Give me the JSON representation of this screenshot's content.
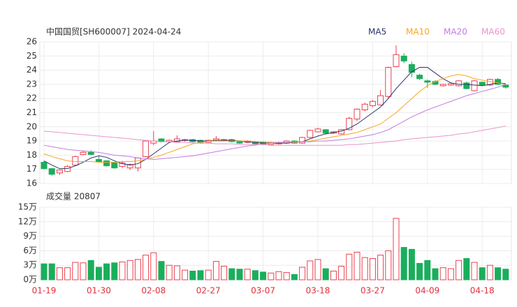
{
  "chart_data": [
    {
      "type": "candlestick",
      "title": "中国国贸[SH600007] 2024-04-24",
      "up_color": "#e8414f",
      "down_color": "#1aae5c",
      "grid": true,
      "ylim": [
        16,
        26
      ],
      "yticks": [
        16,
        17,
        18,
        19,
        20,
        21,
        22,
        23,
        24,
        25,
        26
      ],
      "open": [
        17.5,
        17.05,
        16.75,
        16.85,
        17.3,
        18.05,
        18.2,
        17.7,
        17.6,
        17.45,
        17.2,
        17.1,
        17.1,
        17.9,
        18.85,
        19.15,
        18.95,
        18.95,
        19.05,
        19.1,
        19.05,
        18.9,
        19.05,
        19.05,
        19.1,
        19.0,
        18.9,
        18.95,
        18.9,
        18.75,
        18.8,
        18.85,
        19.0,
        18.85,
        19.25,
        19.65,
        19.8,
        19.55,
        19.5,
        19.8,
        20.55,
        21.2,
        21.5,
        21.55,
        22.15,
        24.25,
        25.0,
        24.4,
        23.65,
        23.25,
        23.2,
        22.9,
        22.95,
        22.9,
        23.1,
        22.55,
        23.15,
        22.95,
        23.35,
        22.95
      ],
      "high": [
        17.6,
        17.1,
        17.0,
        17.3,
        17.95,
        18.3,
        18.35,
        17.9,
        17.65,
        17.5,
        17.6,
        17.4,
        17.85,
        19.05,
        19.7,
        19.2,
        19.1,
        19.4,
        19.15,
        19.15,
        19.1,
        19.1,
        19.35,
        19.15,
        19.15,
        19.05,
        19.05,
        19.0,
        18.95,
        18.95,
        18.95,
        19.05,
        19.05,
        19.3,
        19.8,
        19.95,
        19.85,
        19.7,
        19.85,
        20.7,
        21.3,
        21.7,
        21.9,
        22.6,
        24.25,
        25.75,
        25.2,
        24.6,
        23.75,
        23.35,
        23.3,
        23.05,
        23.1,
        23.3,
        23.2,
        23.3,
        23.2,
        23.4,
        23.45,
        23.0
      ],
      "low": [
        17.0,
        16.55,
        16.6,
        16.8,
        17.25,
        18.0,
        18.0,
        17.5,
        17.2,
        17.05,
        17.1,
        16.95,
        16.85,
        17.85,
        18.7,
        18.9,
        18.85,
        18.9,
        18.95,
        18.9,
        18.8,
        18.85,
        19.0,
        19.0,
        18.9,
        18.8,
        18.85,
        18.75,
        18.7,
        18.7,
        18.75,
        18.8,
        18.8,
        18.8,
        19.2,
        19.6,
        19.5,
        19.5,
        19.45,
        19.75,
        20.4,
        21.1,
        21.4,
        21.5,
        22.0,
        24.2,
        24.5,
        23.5,
        23.3,
        22.75,
        22.95,
        22.85,
        22.9,
        22.85,
        22.65,
        22.5,
        22.9,
        22.9,
        22.95,
        22.7
      ],
      "close": [
        17.05,
        16.65,
        16.95,
        17.2,
        17.9,
        18.2,
        18.05,
        17.55,
        17.25,
        17.1,
        17.45,
        17.35,
        17.8,
        19.0,
        19.0,
        18.95,
        19.05,
        19.15,
        19.1,
        18.95,
        18.85,
        19.05,
        19.15,
        19.1,
        18.95,
        18.85,
        19.0,
        18.8,
        18.75,
        18.9,
        18.9,
        19.0,
        18.85,
        19.25,
        19.75,
        19.85,
        19.55,
        19.65,
        19.8,
        20.6,
        21.25,
        21.6,
        21.8,
        22.2,
        24.2,
        25.1,
        24.65,
        23.85,
        23.4,
        23.15,
        23.0,
        23.0,
        23.05,
        23.25,
        22.7,
        23.25,
        22.95,
        23.35,
        23.0,
        22.8
      ],
      "series": [
        {
          "name": "MA5",
          "color": "#2c3468",
          "values": [
            17.6,
            17.3,
            17.05,
            17.05,
            17.25,
            17.5,
            17.8,
            17.95,
            17.85,
            17.6,
            17.4,
            17.3,
            17.4,
            17.7,
            18.1,
            18.5,
            18.9,
            19.0,
            19.05,
            19.05,
            19.0,
            19.0,
            19.05,
            19.05,
            19.05,
            19.0,
            18.95,
            18.9,
            18.85,
            18.85,
            18.85,
            18.85,
            18.9,
            18.95,
            19.15,
            19.35,
            19.5,
            19.6,
            19.7,
            19.9,
            20.2,
            20.6,
            21.0,
            21.4,
            22.0,
            22.7,
            23.3,
            23.9,
            24.2,
            24.2,
            23.8,
            23.4,
            23.1,
            23.0,
            23.0,
            22.95,
            22.9,
            23.0,
            23.1,
            23.05
          ]
        },
        {
          "name": "MA10",
          "color": "#f5a623",
          "values": [
            18.1,
            17.9,
            17.75,
            17.6,
            17.55,
            17.55,
            17.55,
            17.5,
            17.5,
            17.5,
            17.55,
            17.55,
            17.6,
            17.7,
            17.85,
            18.0,
            18.2,
            18.4,
            18.6,
            18.8,
            18.9,
            19.0,
            19.0,
            19.0,
            19.0,
            19.0,
            19.0,
            18.95,
            18.95,
            18.9,
            18.9,
            18.9,
            18.9,
            18.95,
            19.0,
            19.1,
            19.2,
            19.3,
            19.4,
            19.5,
            19.6,
            19.8,
            20.0,
            20.2,
            20.6,
            21.0,
            21.5,
            22.0,
            22.5,
            22.9,
            23.2,
            23.4,
            23.6,
            23.7,
            23.6,
            23.4,
            23.3,
            23.2,
            23.1,
            23.0
          ]
        },
        {
          "name": "MA20",
          "color": "#c37ce0",
          "values": [
            18.7,
            18.6,
            18.5,
            18.4,
            18.35,
            18.3,
            18.25,
            18.2,
            18.1,
            18.0,
            17.95,
            17.9,
            17.8,
            17.75,
            17.7,
            17.75,
            17.8,
            17.85,
            17.9,
            17.95,
            18.05,
            18.15,
            18.25,
            18.35,
            18.45,
            18.55,
            18.65,
            18.7,
            18.8,
            18.85,
            18.9,
            18.9,
            18.95,
            18.95,
            18.95,
            19.0,
            19.0,
            19.05,
            19.1,
            19.15,
            19.25,
            19.35,
            19.45,
            19.6,
            19.8,
            20.1,
            20.4,
            20.7,
            20.95,
            21.2,
            21.4,
            21.6,
            21.8,
            22.0,
            22.2,
            22.35,
            22.5,
            22.65,
            22.8,
            23.0
          ]
        },
        {
          "name": "MA60",
          "color": "#ec93c8",
          "values": [
            19.7,
            19.65,
            19.6,
            19.55,
            19.5,
            19.45,
            19.4,
            19.35,
            19.3,
            19.25,
            19.2,
            19.15,
            19.1,
            19.05,
            19.0,
            18.95,
            18.95,
            18.9,
            18.9,
            18.85,
            18.85,
            18.85,
            18.8,
            18.8,
            18.8,
            18.75,
            18.75,
            18.75,
            18.75,
            18.7,
            18.7,
            18.7,
            18.7,
            18.7,
            18.7,
            18.7,
            18.7,
            18.7,
            18.7,
            18.75,
            18.75,
            18.8,
            18.85,
            18.9,
            18.95,
            19.0,
            19.1,
            19.15,
            19.2,
            19.25,
            19.3,
            19.35,
            19.4,
            19.5,
            19.55,
            19.65,
            19.75,
            19.85,
            19.95,
            20.05
          ]
        }
      ]
    },
    {
      "type": "bar",
      "title": "成交量 20807",
      "grid": true,
      "ylim": [
        0,
        15
      ],
      "yticks": [
        {
          "value": 0,
          "label": "0万"
        },
        {
          "value": 3,
          "label": "3万"
        },
        {
          "value": 6,
          "label": "6万"
        },
        {
          "value": 9,
          "label": "9万"
        },
        {
          "value": 12,
          "label": "12万"
        },
        {
          "value": 15,
          "label": "15万"
        }
      ],
      "categories": [
        "01-19",
        null,
        null,
        null,
        null,
        null,
        null,
        "01-30",
        null,
        null,
        null,
        null,
        null,
        null,
        "02-08",
        null,
        null,
        null,
        null,
        null,
        null,
        "02-27",
        null,
        null,
        null,
        null,
        null,
        null,
        "03-07",
        null,
        null,
        null,
        null,
        null,
        null,
        "03-18",
        null,
        null,
        null,
        null,
        null,
        null,
        "03-27",
        null,
        null,
        null,
        null,
        null,
        null,
        "04-09",
        null,
        null,
        null,
        null,
        null,
        null,
        "04-18",
        null,
        null,
        null
      ],
      "values": [
        3.3,
        3.3,
        2.5,
        2.5,
        3.6,
        3.5,
        4.0,
        2.6,
        3.3,
        3.5,
        3.7,
        4.0,
        4.2,
        5.1,
        5.6,
        3.8,
        3.0,
        2.9,
        2.0,
        1.8,
        1.9,
        2.0,
        3.8,
        2.8,
        2.3,
        2.2,
        2.2,
        1.9,
        1.6,
        1.4,
        1.7,
        1.5,
        1.1,
        2.6,
        3.9,
        4.2,
        2.3,
        1.8,
        2.8,
        5.3,
        5.7,
        4.6,
        4.4,
        5.1,
        6.0,
        12.7,
        6.7,
        6.3,
        3.4,
        4.0,
        2.3,
        2.5,
        2.3,
        4.0,
        4.4,
        3.6,
        2.5,
        3.0,
        2.5,
        2.2
      ]
    }
  ]
}
